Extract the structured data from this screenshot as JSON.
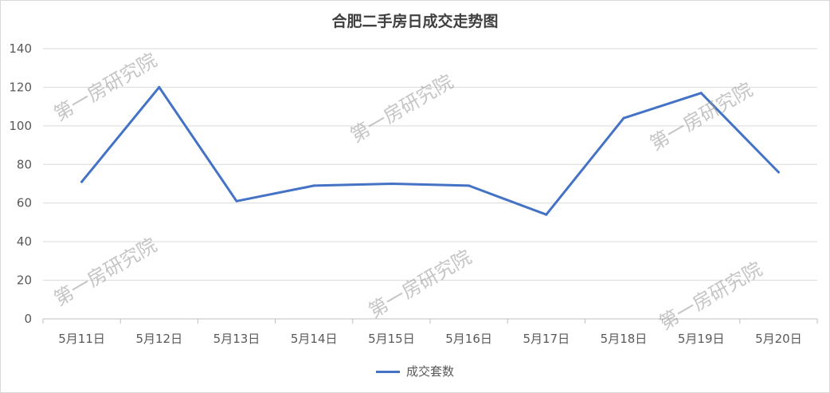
{
  "chart_data": {
    "type": "line",
    "title": "合肥二手房日成交走势图",
    "categories": [
      "5月11日",
      "5月12日",
      "5月13日",
      "5月14日",
      "5月15日",
      "5月16日",
      "5月17日",
      "5月18日",
      "5月19日",
      "5月20日"
    ],
    "series": [
      {
        "name": "成交套数",
        "values": [
          71,
          120,
          61,
          69,
          70,
          69,
          54,
          104,
          117,
          76
        ],
        "color": "#4472c4"
      }
    ],
    "ylim": [
      0,
      140
    ],
    "yticks": [
      0,
      20,
      40,
      60,
      80,
      100,
      120,
      140
    ],
    "grid": true,
    "legend": "bottom"
  },
  "watermark": "第一房研究院"
}
